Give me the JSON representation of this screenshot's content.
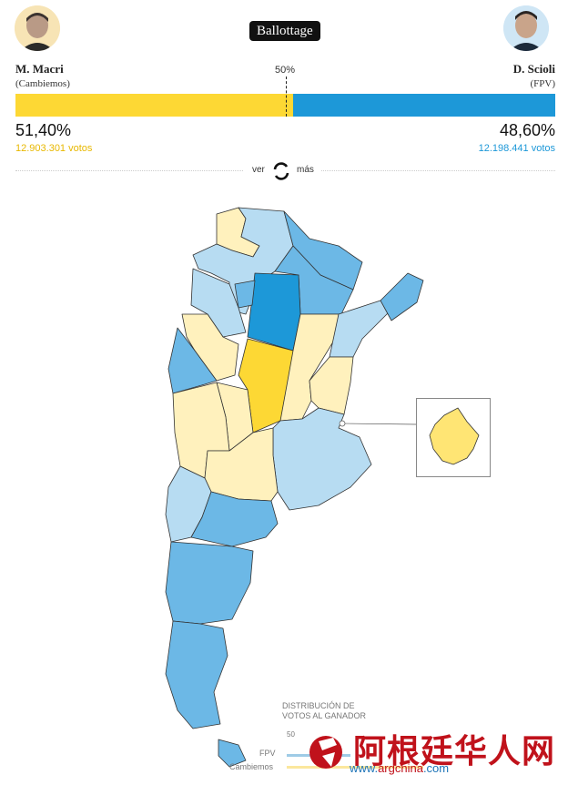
{
  "header": {
    "badge": "Ballottage",
    "fifty_label": "50%"
  },
  "candidates": {
    "left": {
      "name": "M. Macri",
      "party": "(Cambiemos)",
      "percent": "51,40%",
      "votes": "12.903.301 votos",
      "share": 51.4,
      "color": "#fdd834"
    },
    "right": {
      "name": "D. Scioli",
      "party": "(FPV)",
      "percent": "48,60%",
      "votes": "12.198.441 votos",
      "share": 48.6,
      "color": "#1d98d8"
    }
  },
  "toggle": {
    "left": "ver",
    "right": "más",
    "icon": "refresh-icon"
  },
  "legend": {
    "title_line1": "DISTRIBUCIÓN DE",
    "title_line2": "VOTOS AL GANADOR",
    "fifty": "50",
    "fpv": "FPV",
    "cambiemos": "Cambiemos"
  },
  "watermark": {
    "text": "阿根廷华人网",
    "url_prefix": "www.",
    "url_mid": "argchina",
    "url_suffix": ".com"
  },
  "colors": {
    "macri_strong": "#fdd834",
    "macri_mid": "#ffe574",
    "macri_light": "#fff1bd",
    "scioli_strong": "#1d98d8",
    "scioli_mid": "#6cb8e6",
    "scioli_light": "#b7dcf2"
  }
}
